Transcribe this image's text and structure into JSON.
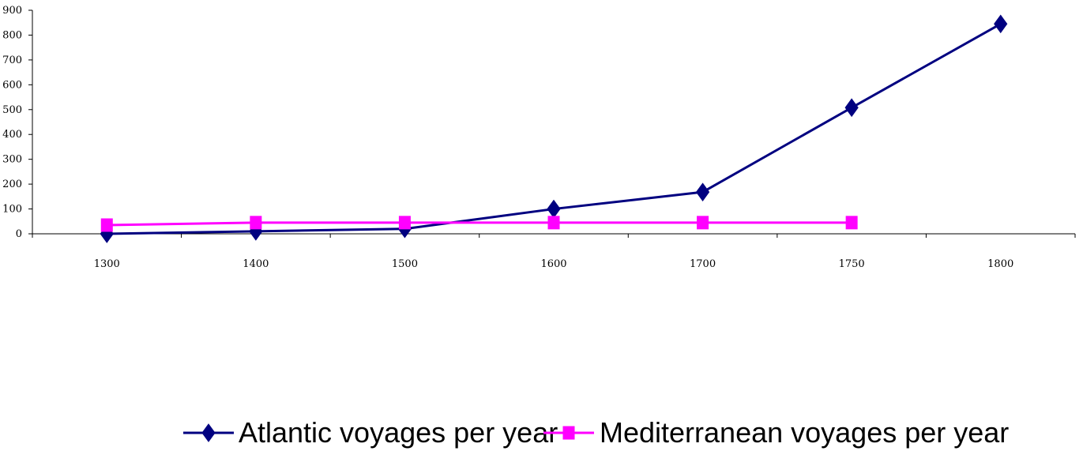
{
  "chart_data": {
    "type": "line",
    "title": "",
    "xlabel": "",
    "ylabel": "",
    "categories": [
      "1300",
      "1400",
      "1500",
      "1600",
      "1700",
      "1750",
      "1800"
    ],
    "ylim": [
      0,
      900
    ],
    "yticks": [
      "0",
      "100",
      "200",
      "300",
      "400",
      "500",
      "600",
      "700",
      "800",
      "900"
    ],
    "grid": false,
    "legend_position": "bottom",
    "series": [
      {
        "name": "Atlantic voyages per year",
        "color": "#000080",
        "marker": "diamond",
        "values": [
          0,
          10,
          20,
          100,
          168,
          508,
          845
        ]
      },
      {
        "name": "Mediterranean voyages per year",
        "color": "#ff00ff",
        "marker": "square",
        "values": [
          35,
          45,
          45,
          45,
          45,
          45,
          null
        ]
      }
    ]
  }
}
